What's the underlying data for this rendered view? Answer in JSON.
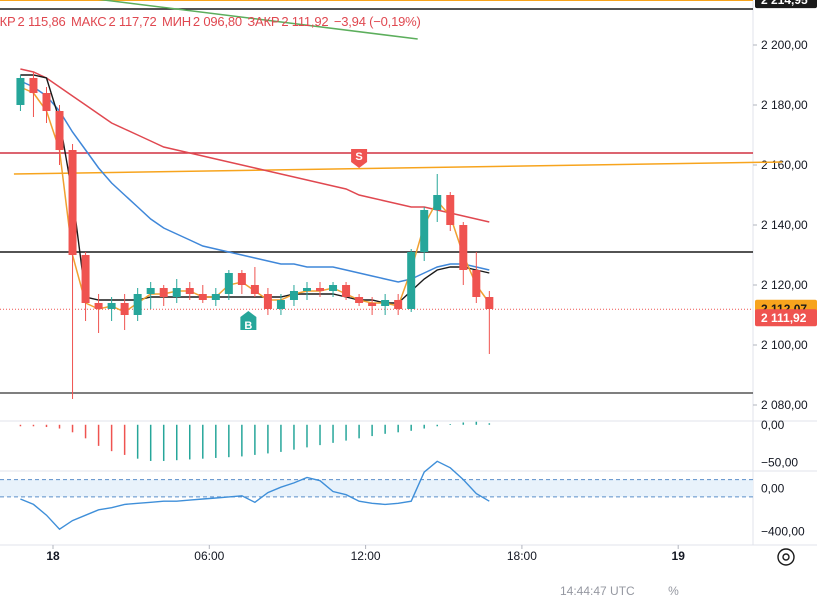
{
  "legend": {
    "open_label": "ОТКР",
    "open": "2 115,86",
    "high_label": "МАКС",
    "high": "2 117,72",
    "low_label": "МИН",
    "low": "2 096,80",
    "close_label": "ЗАКР",
    "close": "2 111,92",
    "change": "−3,94 (−0,19%)"
  },
  "bottom_info": "14:44:47 UTC",
  "bottom_extra": "%",
  "colors": {
    "up": "#26a69a",
    "down": "#ef5350",
    "ma_blue": "#3f87d9",
    "ma_red": "#e04850",
    "ma_black": "#1a1a1a",
    "ma_orange": "#f0a030",
    "ma_green": "#5cae5c",
    "trend_orange": "#f7a41d",
    "hline_red": "#d03040",
    "osc_blue": "#3f8fd9"
  },
  "price_axis": {
    "ticks": [
      2080,
      2100,
      2120,
      2140,
      2160,
      2180,
      2200
    ],
    "tick_labels": [
      "2 080,00",
      "2 100,00",
      "2 120,00",
      "2 140,00",
      "2 160,00",
      "2 180,00",
      "2 200,00"
    ],
    "range": [
      2075,
      2215
    ],
    "price_labels": [
      {
        "value": 2214.95,
        "text": "2 214,95",
        "color": "#1a1a1a",
        "text_color": "#ffffff"
      },
      {
        "value": 2112.07,
        "text": "2 112,07",
        "color": "#f7a41d",
        "text_color": "#1a1a1a"
      },
      {
        "value": 2111.92,
        "text": "2 111,92",
        "color": "#ef5350",
        "text_color": "#ffffff"
      }
    ]
  },
  "time_axis": {
    "labels": [
      {
        "text": "18",
        "t": 0,
        "bold": true
      },
      {
        "text": "06:00",
        "t": 6,
        "bold": false
      },
      {
        "text": "12:00",
        "t": 12,
        "bold": false
      },
      {
        "text": "18:00",
        "t": 18,
        "bold": false
      },
      {
        "text": "19",
        "t": 24,
        "bold": true
      }
    ]
  },
  "chart_data": [
    {
      "type": "candlestick",
      "title": "",
      "interval_hours": 0.5,
      "start_t": -1.5,
      "candles": [
        {
          "o": 2180,
          "h": 2190,
          "l": 2178,
          "c": 2189
        },
        {
          "o": 2189,
          "h": 2191,
          "l": 2176,
          "c": 2184
        },
        {
          "o": 2184,
          "h": 2186,
          "l": 2174,
          "c": 2178
        },
        {
          "o": 2178,
          "h": 2180,
          "l": 2160,
          "c": 2165
        },
        {
          "o": 2165,
          "h": 2167,
          "l": 2082,
          "c": 2130
        },
        {
          "o": 2130,
          "h": 2131,
          "l": 2108,
          "c": 2114
        },
        {
          "o": 2114,
          "h": 2117,
          "l": 2104,
          "c": 2112
        },
        {
          "o": 2112,
          "h": 2116,
          "l": 2108,
          "c": 2114
        },
        {
          "o": 2114,
          "h": 2117,
          "l": 2105,
          "c": 2110
        },
        {
          "o": 2110,
          "h": 2119,
          "l": 2108,
          "c": 2117
        },
        {
          "o": 2117,
          "h": 2121,
          "l": 2112,
          "c": 2119
        },
        {
          "o": 2119,
          "h": 2120,
          "l": 2113,
          "c": 2116
        },
        {
          "o": 2116,
          "h": 2122,
          "l": 2114,
          "c": 2119
        },
        {
          "o": 2119,
          "h": 2121,
          "l": 2115,
          "c": 2117
        },
        {
          "o": 2117,
          "h": 2120,
          "l": 2114,
          "c": 2115
        },
        {
          "o": 2115,
          "h": 2119,
          "l": 2113,
          "c": 2117
        },
        {
          "o": 2117,
          "h": 2125,
          "l": 2115,
          "c": 2124
        },
        {
          "o": 2124,
          "h": 2125,
          "l": 2117,
          "c": 2120
        },
        {
          "o": 2120,
          "h": 2126,
          "l": 2116,
          "c": 2117
        },
        {
          "o": 2117,
          "h": 2119,
          "l": 2110,
          "c": 2112
        },
        {
          "o": 2112,
          "h": 2117,
          "l": 2110,
          "c": 2115
        },
        {
          "o": 2115,
          "h": 2120,
          "l": 2113,
          "c": 2118
        },
        {
          "o": 2118,
          "h": 2121,
          "l": 2115,
          "c": 2119
        },
        {
          "o": 2119,
          "h": 2121,
          "l": 2116,
          "c": 2118
        },
        {
          "o": 2118,
          "h": 2121,
          "l": 2116,
          "c": 2120
        },
        {
          "o": 2120,
          "h": 2121,
          "l": 2115,
          "c": 2116
        },
        {
          "o": 2116,
          "h": 2117,
          "l": 2113,
          "c": 2114
        },
        {
          "o": 2114,
          "h": 2116,
          "l": 2110,
          "c": 2113
        },
        {
          "o": 2113,
          "h": 2117,
          "l": 2110,
          "c": 2115
        },
        {
          "o": 2115,
          "h": 2117,
          "l": 2110,
          "c": 2112
        },
        {
          "o": 2112,
          "h": 2132,
          "l": 2111,
          "c": 2131
        },
        {
          "o": 2131,
          "h": 2146,
          "l": 2128,
          "c": 2145
        },
        {
          "o": 2145,
          "h": 2157,
          "l": 2141,
          "c": 2150
        },
        {
          "o": 2150,
          "h": 2151,
          "l": 2138,
          "c": 2140
        },
        {
          "o": 2140,
          "h": 2141,
          "l": 2120,
          "c": 2125
        },
        {
          "o": 2125,
          "h": 2131,
          "l": 2114,
          "c": 2116
        },
        {
          "o": 2116,
          "h": 2118,
          "l": 2097,
          "c": 2112
        }
      ],
      "ma_series": [
        {
          "color": "#3f87d9",
          "values": [
            2188,
            2186,
            2183,
            2178,
            2171,
            2165,
            2159,
            2154,
            2150,
            2146,
            2142,
            2139,
            2137,
            2135,
            2133,
            2132,
            2131,
            2130,
            2129,
            2128,
            2127,
            2127,
            2126,
            2126,
            2126,
            2125,
            2124,
            2123,
            2122,
            2121,
            2122,
            2124,
            2126,
            2127,
            2127,
            2126,
            2125
          ]
        },
        {
          "color": "#e04850",
          "values": [
            2192,
            2191,
            2189,
            2186,
            2183,
            2180,
            2177,
            2174,
            2172,
            2170,
            2168,
            2166,
            2165,
            2164,
            2163,
            2162,
            2161,
            2160,
            2159,
            2158,
            2157,
            2156,
            2155,
            2154,
            2153,
            2152,
            2150,
            2149,
            2148,
            2147,
            2146,
            2146,
            2145,
            2144,
            2143,
            2142,
            2141
          ]
        },
        {
          "color": "#1a1a1a",
          "values": [
            2190,
            2190,
            2189,
            2175,
            2150,
            2116,
            2115,
            2115,
            2115,
            2115,
            2116,
            2116,
            2116,
            2116,
            2116,
            2116,
            2116,
            2116,
            2116,
            2116,
            2116,
            2117,
            2117,
            2117,
            2117,
            2116,
            2115,
            2115,
            2114,
            2114,
            2118,
            2122,
            2125,
            2126,
            2126,
            2125,
            2124
          ]
        },
        {
          "color": "#f0a030",
          "values": [
            2186,
            2184,
            2178,
            2165,
            2130,
            2114,
            2112,
            2113,
            2111,
            2114,
            2117,
            2117,
            2118,
            2118,
            2116,
            2116,
            2120,
            2121,
            2118,
            2115,
            2115,
            2117,
            2118,
            2118,
            2119,
            2117,
            2115,
            2114,
            2114,
            2113,
            2125,
            2140,
            2148,
            2143,
            2130,
            2120,
            2114
          ]
        }
      ],
      "trend_line": {
        "t1": -1.5,
        "p1": 2157,
        "t2": 28,
        "p2": 2161,
        "color": "#f7a41d"
      },
      "green_line": {
        "t1": 1.5,
        "p1": 2215.5,
        "t2": 14,
        "p2": 2202,
        "color": "#5cae5c"
      },
      "horizontal_lines": [
        {
          "value": 2164,
          "color": "#d03040"
        },
        {
          "value": 2131,
          "color": "#1a1a1a"
        },
        {
          "value": 2084,
          "color": "#555555"
        },
        {
          "value": 2212,
          "color": "#1a1a1a"
        },
        {
          "value": 2214.95,
          "color": "#f7a41d"
        }
      ],
      "signals": [
        {
          "type": "sell",
          "label": "S",
          "t": 11.75,
          "price": 2160,
          "color": "#ef5350"
        },
        {
          "type": "buy",
          "label": "B",
          "t": 7.5,
          "price": 2110,
          "color": "#26a69a"
        }
      ]
    },
    {
      "type": "histogram",
      "title": "",
      "tick_labels": [
        "0,00",
        "−50,00"
      ],
      "range": [
        -60,
        5
      ],
      "ticks": [
        0,
        -50
      ],
      "values": [
        -2,
        -2,
        -3,
        -5,
        -10,
        -18,
        -28,
        -35,
        -40,
        -45,
        -48,
        -48,
        -47,
        -46,
        -45,
        -44,
        -43,
        -42,
        -40,
        -38,
        -36,
        -33,
        -30,
        -27,
        -24,
        -21,
        -18,
        -15,
        -12,
        -10,
        -8,
        -5,
        -2,
        1,
        3,
        4,
        2
      ]
    },
    {
      "type": "line",
      "title": "",
      "tick_labels": [
        "0,00",
        "−400,00"
      ],
      "range": [
        -480,
        160
      ],
      "ticks": [
        0,
        -400
      ],
      "band": [
        80,
        -80
      ],
      "values": [
        -100,
        -150,
        -250,
        -380,
        -300,
        -250,
        -200,
        -180,
        -150,
        -140,
        -130,
        -120,
        -120,
        -110,
        -100,
        -90,
        -80,
        -70,
        -130,
        -40,
        10,
        50,
        100,
        70,
        -30,
        -60,
        -120,
        -140,
        -150,
        -140,
        -120,
        150,
        250,
        190,
        80,
        -50,
        -120
      ]
    }
  ]
}
